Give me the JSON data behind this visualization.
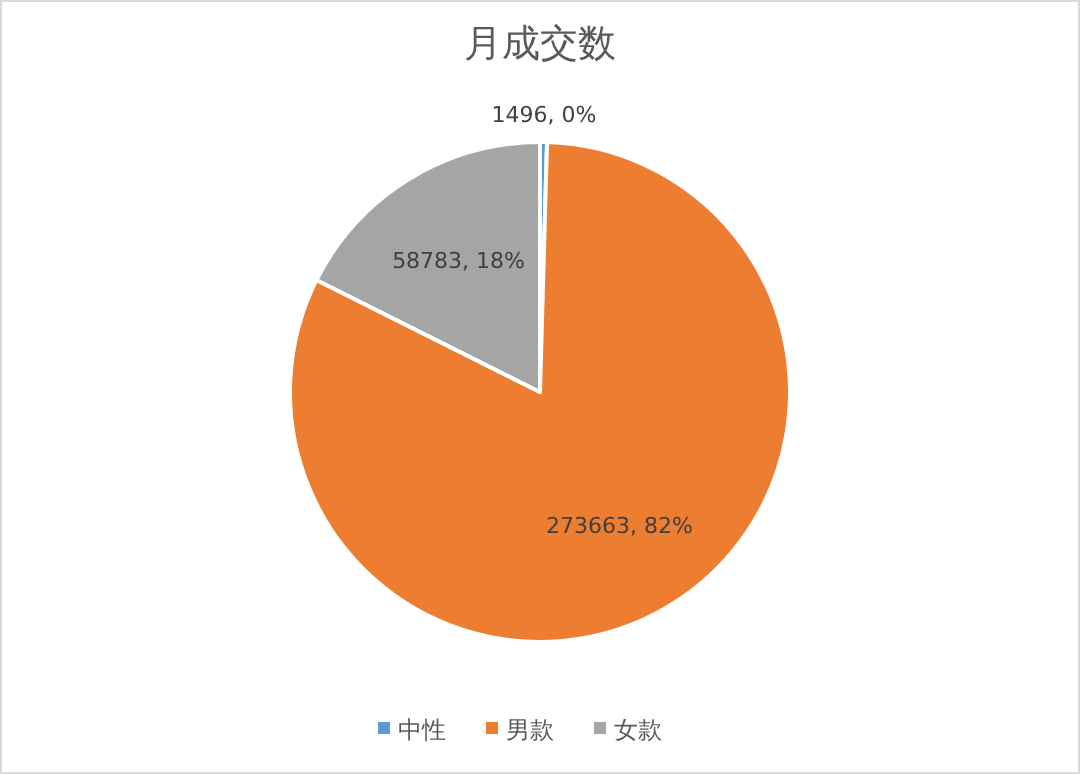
{
  "chart_data": {
    "type": "pie",
    "title": "月成交数",
    "categories": [
      "中性",
      "男款",
      "女款"
    ],
    "values": [
      1496,
      273663,
      58783
    ],
    "colors": [
      "#5b9bd5",
      "#ed7d31",
      "#a5a5a5"
    ],
    "value_labels": [
      "1496, 0%",
      "273663, 82%",
      "58783, 18%"
    ],
    "legend": "bottom"
  }
}
